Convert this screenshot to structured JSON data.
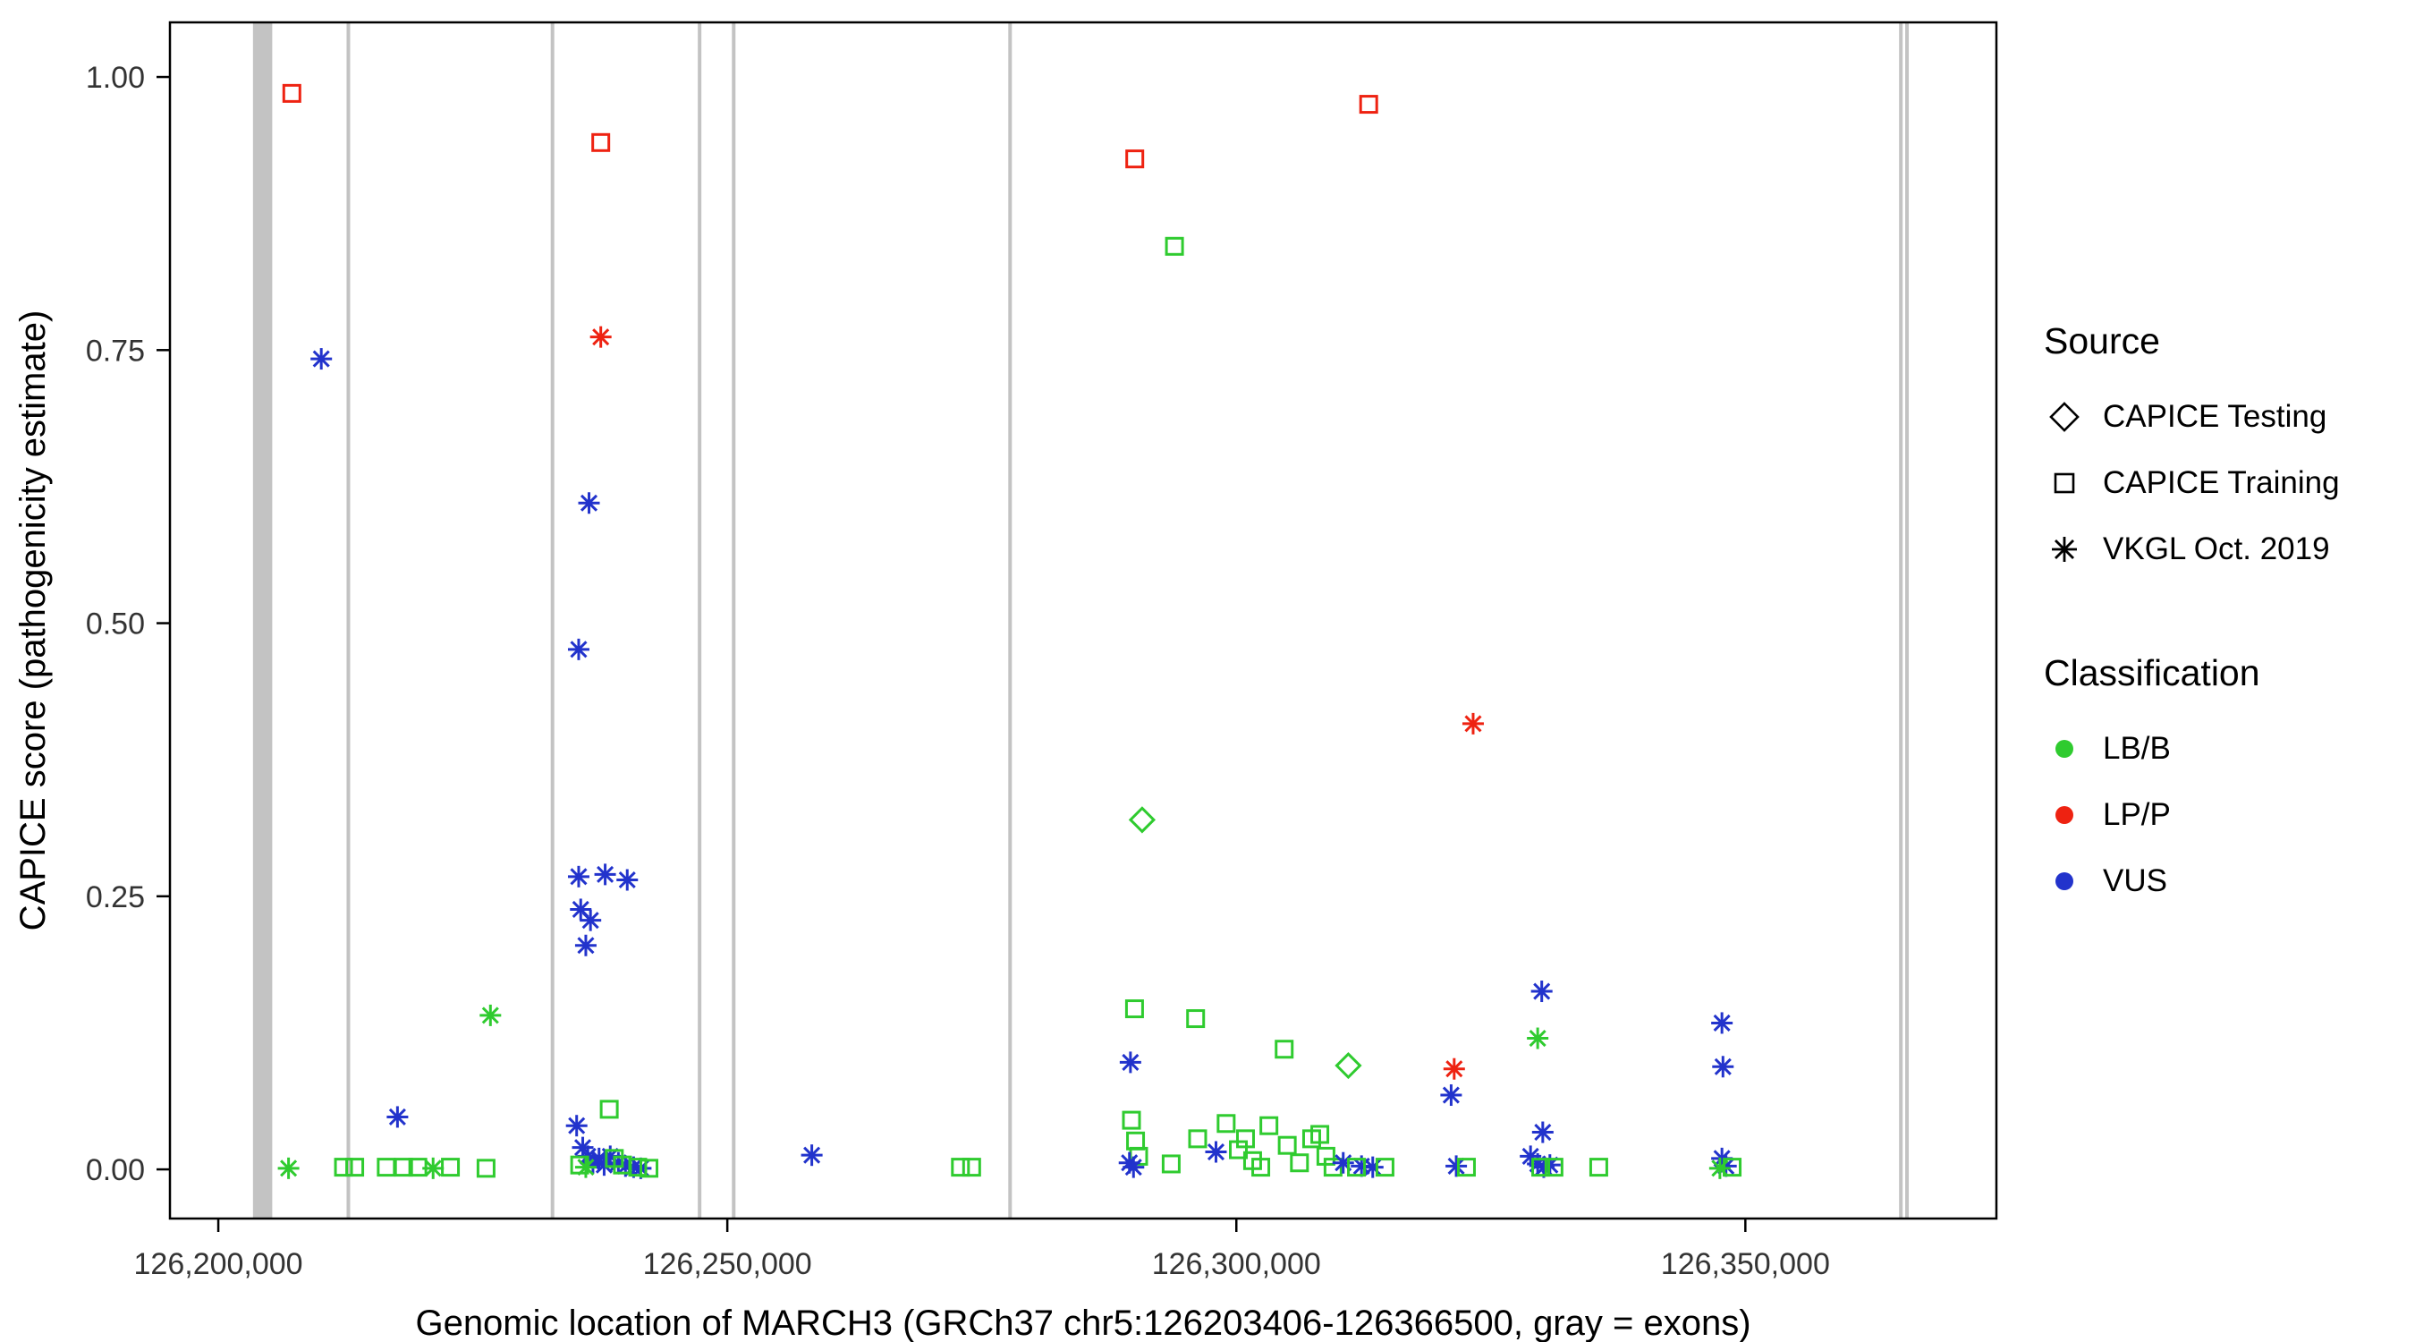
{
  "figure": {
    "xlabel": "Genomic location of MARCH3 (GRCh37 chr5:126203406-126366500, gray = exons)",
    "ylabel": "CAPICE score (pathogenicity estimate)"
  },
  "legend": {
    "source_title": "Source",
    "source_items": [
      {
        "label": "CAPICE Testing",
        "shape": "diamond"
      },
      {
        "label": "CAPICE Training",
        "shape": "square"
      },
      {
        "label": "VKGL Oct. 2019",
        "shape": "asterisk"
      }
    ],
    "classification_title": "Classification",
    "classification_items": [
      {
        "label": "LB/B",
        "color": "#2FCB2F"
      },
      {
        "label": "LP/P",
        "color": "#EE2211"
      },
      {
        "label": "VUS",
        "color": "#2233CC"
      }
    ]
  },
  "chart_data": {
    "type": "scatter",
    "title": "",
    "xlabel": "Genomic location of MARCH3 (GRCh37 chr5:126203406-126366500, gray = exons)",
    "ylabel": "CAPICE score (pathogenicity estimate)",
    "xlim": [
      126195250,
      126374660
    ],
    "ylim": [
      -0.045,
      1.05
    ],
    "grid": false,
    "legend_position": "right",
    "x_ticks": [
      {
        "value": 126200000,
        "label": "126,200,000"
      },
      {
        "value": 126250000,
        "label": "126,250,000"
      },
      {
        "value": 126300000,
        "label": "126,300,000"
      },
      {
        "value": 126350000,
        "label": "126,350,000"
      }
    ],
    "y_ticks": [
      {
        "value": 0.0,
        "label": "0.00"
      },
      {
        "value": 0.25,
        "label": "0.25"
      },
      {
        "value": 0.5,
        "label": "0.50"
      },
      {
        "value": 0.75,
        "label": "0.75"
      },
      {
        "value": 1.0,
        "label": "1.00"
      }
    ],
    "exon_color": "#C3C3C3",
    "exons": [
      [
        126203406,
        126205300
      ],
      [
        126212600,
        126212950
      ],
      [
        126232650,
        126233000
      ],
      [
        126247100,
        126247450
      ],
      [
        126250450,
        126250800
      ],
      [
        126277600,
        126277950
      ],
      [
        126365100,
        126365400
      ],
      [
        126365700,
        126366000
      ]
    ],
    "source_codes": {
      "T": "CAPICE Training",
      "D": "CAPICE Testing",
      "V": "VKGL Oct. 2019"
    },
    "class_codes": {
      "G": "LB/B",
      "R": "LP/P",
      "B": "VUS"
    },
    "shapes": {
      "CAPICE Testing": "diamond",
      "CAPICE Training": "square",
      "VKGL Oct. 2019": "asterisk"
    },
    "colors": {
      "LB/B": "#2FCB2F",
      "LP/P": "#EE2211",
      "VUS": "#2233CC"
    },
    "points": [
      [
        126207225,
        0.985,
        "T",
        "R"
      ],
      [
        126237570,
        0.94,
        "T",
        "R"
      ],
      [
        126237570,
        0.762,
        "V",
        "R"
      ],
      [
        126210115,
        0.742,
        "V",
        "B"
      ],
      [
        126236414,
        0.61,
        "V",
        "B"
      ],
      [
        126235400,
        0.476,
        "V",
        "B"
      ],
      [
        126290024,
        0.925,
        "T",
        "R"
      ],
      [
        126293925,
        0.845,
        "T",
        "G"
      ],
      [
        126313000,
        0.975,
        "T",
        "R"
      ],
      [
        126323260,
        0.408,
        "V",
        "R"
      ],
      [
        126290746,
        0.32,
        "D",
        "G"
      ],
      [
        126235400,
        0.268,
        "V",
        "B"
      ],
      [
        126238000,
        0.27,
        "V",
        "B"
      ],
      [
        126240170,
        0.265,
        "V",
        "B"
      ],
      [
        126235600,
        0.238,
        "V",
        "B"
      ],
      [
        126236560,
        0.228,
        "V",
        "B"
      ],
      [
        126236100,
        0.205,
        "V",
        "B"
      ],
      [
        126226730,
        0.141,
        "V",
        "G"
      ],
      [
        126330000,
        0.163,
        "V",
        "B"
      ],
      [
        126347700,
        0.134,
        "V",
        "B"
      ],
      [
        126290000,
        0.147,
        "T",
        "G"
      ],
      [
        126296000,
        0.138,
        "T",
        "G"
      ],
      [
        126304700,
        0.11,
        "T",
        "G"
      ],
      [
        126311000,
        0.095,
        "D",
        "G"
      ],
      [
        126321400,
        0.092,
        "V",
        "R"
      ],
      [
        126289600,
        0.098,
        "V",
        "B"
      ],
      [
        126321100,
        0.068,
        "V",
        "B"
      ],
      [
        126329600,
        0.12,
        "V",
        "G"
      ],
      [
        126347800,
        0.094,
        "V",
        "B"
      ],
      [
        126330100,
        0.034,
        "V",
        "B"
      ],
      [
        126206900,
        0.001,
        "V",
        "G"
      ],
      [
        126212300,
        0.002,
        "T",
        "G"
      ],
      [
        126213400,
        0.002,
        "T",
        "G"
      ],
      [
        126217600,
        0.048,
        "V",
        "B"
      ],
      [
        126216500,
        0.002,
        "T",
        "G"
      ],
      [
        126218200,
        0.002,
        "T",
        "G"
      ],
      [
        126219600,
        0.002,
        "T",
        "G"
      ],
      [
        126221100,
        0.001,
        "V",
        "G"
      ],
      [
        126222800,
        0.002,
        "T",
        "G"
      ],
      [
        126226300,
        0.001,
        "T",
        "G"
      ],
      [
        126238400,
        0.055,
        "T",
        "G"
      ],
      [
        126235200,
        0.04,
        "V",
        "B"
      ],
      [
        126235800,
        0.02,
        "V",
        "B"
      ],
      [
        126236300,
        0.012,
        "V",
        "B"
      ],
      [
        126236800,
        0.006,
        "V",
        "B"
      ],
      [
        126237400,
        0.01,
        "V",
        "B"
      ],
      [
        126237900,
        0.004,
        "V",
        "B"
      ],
      [
        126238500,
        0.012,
        "V",
        "B"
      ],
      [
        126239300,
        0.006,
        "V",
        "B"
      ],
      [
        126240000,
        0.003,
        "V",
        "B"
      ],
      [
        126240800,
        0.002,
        "V",
        "B"
      ],
      [
        126241500,
        0.001,
        "V",
        "B"
      ],
      [
        126235500,
        0.004,
        "T",
        "G"
      ],
      [
        126236100,
        0.002,
        "V",
        "G"
      ],
      [
        126238900,
        0.01,
        "T",
        "G"
      ],
      [
        126239700,
        0.004,
        "T",
        "G"
      ],
      [
        126241200,
        0.002,
        "T",
        "G"
      ],
      [
        126242300,
        0.001,
        "T",
        "G"
      ],
      [
        126258300,
        0.013,
        "V",
        "B"
      ],
      [
        126272900,
        0.002,
        "T",
        "G"
      ],
      [
        126274000,
        0.002,
        "T",
        "G"
      ],
      [
        126289700,
        0.045,
        "T",
        "G"
      ],
      [
        126290100,
        0.026,
        "T",
        "G"
      ],
      [
        126290400,
        0.012,
        "T",
        "G"
      ],
      [
        126289500,
        0.006,
        "V",
        "B"
      ],
      [
        126289900,
        0.002,
        "V",
        "B"
      ],
      [
        126293600,
        0.005,
        "T",
        "G"
      ],
      [
        126296200,
        0.028,
        "T",
        "G"
      ],
      [
        126298000,
        0.016,
        "V",
        "B"
      ],
      [
        126299000,
        0.042,
        "T",
        "G"
      ],
      [
        126300200,
        0.018,
        "T",
        "G"
      ],
      [
        126300900,
        0.028,
        "T",
        "G"
      ],
      [
        126301600,
        0.008,
        "T",
        "G"
      ],
      [
        126302400,
        0.002,
        "T",
        "G"
      ],
      [
        126303200,
        0.04,
        "T",
        "G"
      ],
      [
        126305000,
        0.022,
        "T",
        "G"
      ],
      [
        126306200,
        0.006,
        "T",
        "G"
      ],
      [
        126307400,
        0.028,
        "T",
        "G"
      ],
      [
        126308200,
        0.032,
        "T",
        "G"
      ],
      [
        126308800,
        0.012,
        "T",
        "G"
      ],
      [
        126309500,
        0.002,
        "T",
        "G"
      ],
      [
        126310500,
        0.006,
        "V",
        "B"
      ],
      [
        126312300,
        0.003,
        "V",
        "B"
      ],
      [
        126313400,
        0.002,
        "V",
        "B"
      ],
      [
        126311800,
        0.002,
        "T",
        "G"
      ],
      [
        126314600,
        0.002,
        "T",
        "G"
      ],
      [
        126321600,
        0.003,
        "V",
        "B"
      ],
      [
        126322600,
        0.002,
        "T",
        "G"
      ],
      [
        126328900,
        0.012,
        "V",
        "B"
      ],
      [
        126329600,
        0.005,
        "V",
        "B"
      ],
      [
        126330200,
        0.002,
        "V",
        "B"
      ],
      [
        126330800,
        0.004,
        "V",
        "B"
      ],
      [
        126329900,
        0.002,
        "T",
        "G"
      ],
      [
        126331200,
        0.002,
        "T",
        "G"
      ],
      [
        126335600,
        0.002,
        "T",
        "G"
      ],
      [
        126347700,
        0.01,
        "V",
        "B"
      ],
      [
        126348100,
        0.003,
        "V",
        "B"
      ],
      [
        126348700,
        0.002,
        "T",
        "G"
      ],
      [
        126347500,
        0.001,
        "V",
        "G"
      ]
    ]
  }
}
